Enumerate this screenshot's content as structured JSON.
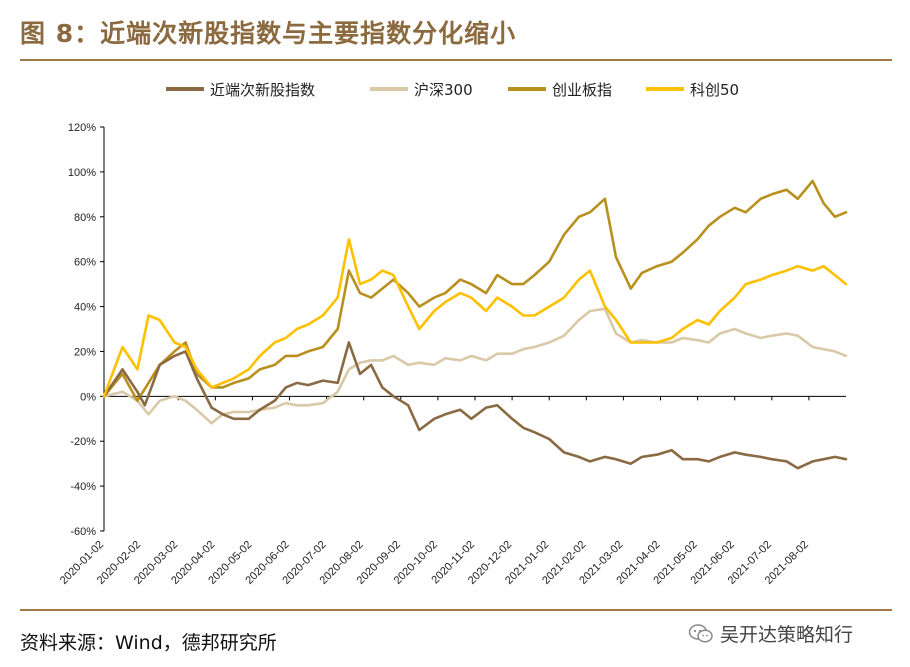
{
  "header": {
    "title": "图 8：近端次新股指数与主要指数分化缩小"
  },
  "footer": {
    "source": "资料来源：Wind，德邦研究所",
    "watermark": "吴开达策略知行"
  },
  "colors": {
    "rule": "#a0784a",
    "axis": "#000000"
  },
  "chart_data": {
    "type": "line",
    "title": "",
    "xlabel": "",
    "ylabel": "",
    "ylim": [
      -60,
      120
    ],
    "yticks": [
      -60,
      -40,
      -20,
      0,
      20,
      40,
      60,
      80,
      100,
      120
    ],
    "ytick_labels": [
      "-60%",
      "-40%",
      "-20%",
      "0%",
      "20%",
      "40%",
      "60%",
      "80%",
      "100%",
      "120%"
    ],
    "xlim": [
      0,
      20
    ],
    "xtick_labels": [
      "2020-01-02",
      "2020-02-02",
      "2020-03-02",
      "2020-04-02",
      "2020-05-02",
      "2020-06-02",
      "2020-07-02",
      "2020-08-02",
      "2020-09-02",
      "2020-10-02",
      "2020-11-02",
      "2020-12-02",
      "2021-01-02",
      "2021-02-02",
      "2021-03-02",
      "2021-04-02",
      "2021-05-02",
      "2021-06-02",
      "2021-07-02",
      "2021-08-02"
    ],
    "legend_position": "top",
    "series": [
      {
        "name": "近端次新股指数",
        "color": "#8a6a42",
        "x": [
          0,
          0.5,
          0.9,
          1.1,
          1.5,
          1.9,
          2.2,
          2.5,
          2.9,
          3.2,
          3.5,
          3.9,
          4.2,
          4.6,
          4.9,
          5.2,
          5.5,
          5.9,
          6.3,
          6.6,
          6.9,
          7.2,
          7.5,
          7.8,
          8.2,
          8.5,
          8.9,
          9.2,
          9.6,
          9.9,
          10.3,
          10.6,
          11.0,
          11.3,
          11.6,
          12.0,
          12.4,
          12.8,
          13.1,
          13.5,
          13.8,
          14.2,
          14.5,
          14.9,
          15.3,
          15.6,
          16.0,
          16.3,
          16.6,
          17.0,
          17.3,
          17.7,
          18.0,
          18.4,
          18.7,
          19.1,
          19.4,
          19.7,
          20.0
        ],
        "values": [
          0,
          12,
          2,
          -4,
          14,
          18,
          20,
          8,
          -5,
          -8,
          -10,
          -10,
          -6,
          -2,
          4,
          6,
          5,
          7,
          6,
          24,
          10,
          14,
          4,
          0,
          -4,
          -15,
          -10,
          -8,
          -6,
          -10,
          -5,
          -4,
          -10,
          -14,
          -16,
          -19,
          -25,
          -27,
          -29,
          -27,
          -28,
          -30,
          -27,
          -26,
          -24,
          -28,
          -28,
          -29,
          -27,
          -25,
          -26,
          -27,
          -28,
          -29,
          -32,
          -29,
          -28,
          -27,
          -28
        ]
      },
      {
        "name": "沪深300",
        "color": "#d9c9a8",
        "x": [
          0,
          0.5,
          0.9,
          1.2,
          1.5,
          1.9,
          2.2,
          2.5,
          2.9,
          3.2,
          3.5,
          3.9,
          4.2,
          4.6,
          4.9,
          5.2,
          5.5,
          5.9,
          6.3,
          6.6,
          6.9,
          7.2,
          7.5,
          7.8,
          8.2,
          8.5,
          8.9,
          9.2,
          9.6,
          9.9,
          10.3,
          10.6,
          11.0,
          11.3,
          11.6,
          12.0,
          12.4,
          12.8,
          13.1,
          13.5,
          13.8,
          14.2,
          14.5,
          14.9,
          15.3,
          15.6,
          16.0,
          16.3,
          16.6,
          17.0,
          17.3,
          17.7,
          18.0,
          18.4,
          18.7,
          19.1,
          19.4,
          19.7,
          20.0
        ],
        "values": [
          0,
          2,
          -2,
          -8,
          -2,
          0,
          -2,
          -6,
          -12,
          -8,
          -7,
          -7,
          -6,
          -5,
          -3,
          -4,
          -4,
          -3,
          2,
          12,
          15,
          16,
          16,
          18,
          14,
          15,
          14,
          17,
          16,
          18,
          16,
          19,
          19,
          21,
          22,
          24,
          27,
          34,
          38,
          39,
          28,
          24,
          25,
          24,
          24,
          26,
          25,
          24,
          28,
          30,
          28,
          26,
          27,
          28,
          27,
          22,
          21,
          20,
          18
        ]
      },
      {
        "name": "创业板指",
        "color": "#b8901e",
        "x": [
          0,
          0.5,
          0.9,
          1.2,
          1.5,
          1.9,
          2.2,
          2.5,
          2.9,
          3.2,
          3.5,
          3.9,
          4.2,
          4.6,
          4.9,
          5.2,
          5.5,
          5.9,
          6.3,
          6.6,
          6.9,
          7.2,
          7.5,
          7.8,
          8.2,
          8.5,
          8.9,
          9.2,
          9.6,
          9.9,
          10.3,
          10.6,
          11.0,
          11.3,
          11.6,
          12.0,
          12.4,
          12.8,
          13.1,
          13.5,
          13.8,
          14.2,
          14.5,
          14.9,
          15.3,
          15.6,
          16.0,
          16.3,
          16.6,
          17.0,
          17.3,
          17.7,
          18.0,
          18.4,
          18.7,
          19.1,
          19.4,
          19.7,
          20.0
        ],
        "values": [
          0,
          10,
          -2,
          6,
          14,
          20,
          24,
          10,
          4,
          4,
          6,
          8,
          12,
          14,
          18,
          18,
          20,
          22,
          30,
          56,
          46,
          44,
          48,
          52,
          46,
          40,
          44,
          46,
          52,
          50,
          46,
          54,
          50,
          50,
          54,
          60,
          72,
          80,
          82,
          88,
          62,
          48,
          55,
          58,
          60,
          64,
          70,
          76,
          80,
          84,
          82,
          88,
          90,
          92,
          88,
          96,
          86,
          80,
          82
        ]
      },
      {
        "name": "科创50",
        "color": "#ffc000",
        "x": [
          0,
          0.5,
          0.9,
          1.2,
          1.5,
          1.9,
          2.2,
          2.5,
          2.9,
          3.2,
          3.5,
          3.9,
          4.2,
          4.6,
          4.9,
          5.2,
          5.5,
          5.9,
          6.3,
          6.6,
          6.9,
          7.2,
          7.5,
          7.8,
          8.2,
          8.5,
          8.9,
          9.2,
          9.6,
          9.9,
          10.3,
          10.6,
          11.0,
          11.3,
          11.6,
          12.0,
          12.4,
          12.8,
          13.1,
          13.5,
          13.8,
          14.2,
          14.5,
          14.9,
          15.3,
          15.6,
          16.0,
          16.3,
          16.6,
          17.0,
          17.3,
          17.7,
          18.0,
          18.4,
          18.7,
          19.1,
          19.4,
          19.7,
          20.0
        ],
        "values": [
          0,
          22,
          12,
          36,
          34,
          24,
          22,
          12,
          4,
          6,
          8,
          12,
          18,
          24,
          26,
          30,
          32,
          36,
          44,
          70,
          50,
          52,
          56,
          54,
          40,
          30,
          38,
          42,
          46,
          44,
          38,
          44,
          40,
          36,
          36,
          40,
          44,
          52,
          56,
          40,
          34,
          24,
          24,
          24,
          26,
          30,
          34,
          32,
          38,
          44,
          50,
          52,
          54,
          56,
          58,
          56,
          58,
          54,
          50
        ]
      }
    ]
  }
}
